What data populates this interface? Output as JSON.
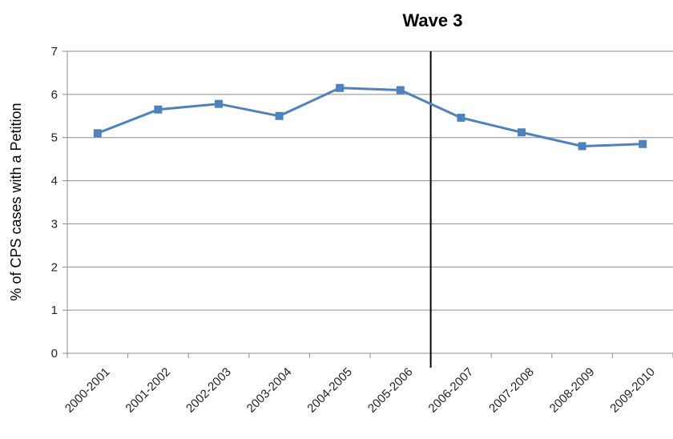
{
  "chart_data": {
    "type": "line",
    "title": "Wave 3",
    "ylabel": "% of CPS cases with a Petition",
    "xlabel": "",
    "categories": [
      "2000-2001",
      "2001-2002",
      "2002-2003",
      "2003-2004",
      "2004-2005",
      "2005-2006",
      "2006-2007",
      "2007-2008",
      "2008-2009",
      "2009-2010"
    ],
    "series": [
      {
        "values": [
          5.1,
          5.65,
          5.78,
          5.5,
          6.15,
          6.1,
          5.46,
          5.12,
          4.8,
          4.85
        ],
        "color": "#4f81bd",
        "marker": "square"
      }
    ],
    "ylim": [
      0,
      7
    ],
    "yticks": [
      "0",
      "1",
      "2",
      "3",
      "4",
      "5",
      "6",
      "7"
    ],
    "grid": true,
    "legend": "none",
    "vertical_marker": {
      "between": [
        "2005-2006",
        "2006-2007"
      ],
      "color": "#000000"
    }
  }
}
